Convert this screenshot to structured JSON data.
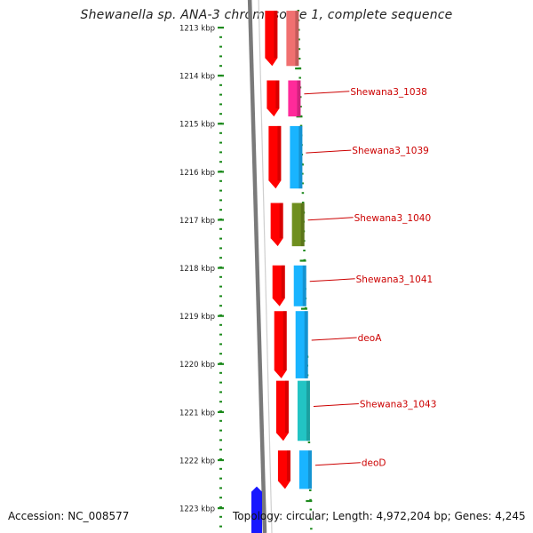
{
  "title": "Shewanella sp. ANA-3 chromosome 1, complete sequence",
  "footer": {
    "accession": "Accession: NC_008577",
    "topology": "Topology: circular; Length: 4,972,204 bp; Genes: 4,245"
  },
  "colors": {
    "backbone": "#7a7a7a",
    "ruler_dots": "#1d8a1d",
    "label": "#cc0000",
    "cds_strand": "#ff0000",
    "feature_pink": "#ff2a9a",
    "feature_blue": "#19b4ff",
    "feature_olive": "#6f8f1f",
    "feature_teal": "#22c4c4",
    "feature_salmon": "#f07070",
    "feature_dark_blue": "#1818ff"
  },
  "diagram": {
    "kbp_ticks": [
      {
        "kb": 1213,
        "label": "1213 kbp"
      },
      {
        "kb": 1214,
        "label": "1214 kbp"
      },
      {
        "kb": 1215,
        "label": "1215 kbp"
      },
      {
        "kb": 1216,
        "label": "1216 kbp"
      },
      {
        "kb": 1217,
        "label": "1217 kbp"
      },
      {
        "kb": 1218,
        "label": "1218 kbp"
      },
      {
        "kb": 1219,
        "label": "1219 kbp"
      },
      {
        "kb": 1220,
        "label": "1220 kbp"
      },
      {
        "kb": 1221,
        "label": "1221 kbp"
      },
      {
        "kb": 1222,
        "label": "1222 kbp"
      },
      {
        "kb": 1223,
        "label": "1223 kbp"
      }
    ],
    "features": [
      {
        "start_kb": 1212.65,
        "end_kb": 1213.8,
        "color": "feature_salmon",
        "label": ""
      },
      {
        "start_kb": 1214.1,
        "end_kb": 1214.85,
        "color": "feature_pink",
        "label": "Shewana3_1038"
      },
      {
        "start_kb": 1215.05,
        "end_kb": 1216.35,
        "color": "feature_blue",
        "label": "Shewana3_1039"
      },
      {
        "start_kb": 1216.65,
        "end_kb": 1217.55,
        "color": "feature_olive",
        "label": "Shewana3_1040"
      },
      {
        "start_kb": 1217.95,
        "end_kb": 1218.8,
        "color": "feature_blue",
        "label": "Shewana3_1041"
      },
      {
        "start_kb": 1218.9,
        "end_kb": 1220.3,
        "color": "feature_blue",
        "label": "deoA"
      },
      {
        "start_kb": 1220.35,
        "end_kb": 1221.6,
        "color": "feature_teal",
        "label": "Shewana3_1043"
      },
      {
        "start_kb": 1221.8,
        "end_kb": 1222.6,
        "color": "feature_blue",
        "label": "deoD"
      }
    ],
    "lower_feature": {
      "start_kb": 1222.55,
      "end_kb": 1223.6,
      "color": "feature_dark_blue"
    }
  }
}
